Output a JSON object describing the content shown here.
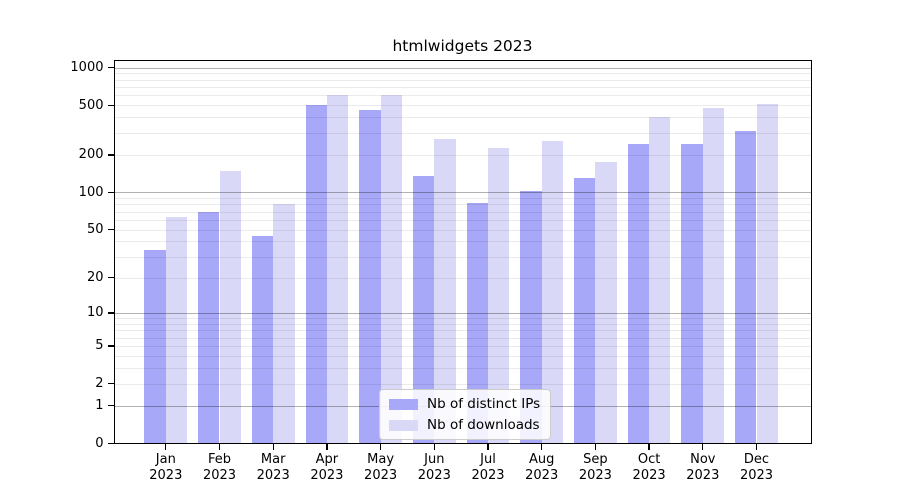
{
  "figure": {
    "title": "htmlwidgets 2023"
  },
  "chart_data": {
    "type": "bar",
    "title": "htmlwidgets 2023",
    "categories": [
      "Jan",
      "Feb",
      "Mar",
      "Apr",
      "May",
      "Jun",
      "Jul",
      "Aug",
      "Sep",
      "Oct",
      "Nov",
      "Dec"
    ],
    "category_year": "2023",
    "series": [
      {
        "name": "Nb of distinct IPs",
        "color": "#a8a8f8",
        "values": [
          34,
          70,
          44,
          500,
          461,
          135,
          82,
          103,
          130,
          244,
          244,
          308
        ]
      },
      {
        "name": "Nb of downloads",
        "color": "#d9d9f7",
        "values": [
          63,
          149,
          81,
          598,
          598,
          267,
          227,
          259,
          174,
          403,
          472,
          507
        ]
      }
    ],
    "yscale": "log1p",
    "ylim": [
      0,
      1148
    ],
    "yticks": [
      0,
      1,
      2,
      5,
      10,
      20,
      50,
      100,
      200,
      500,
      1000
    ],
    "major_grid": [
      1,
      10,
      100,
      1000
    ],
    "minor_grid": [
      2,
      3,
      4,
      5,
      6,
      7,
      8,
      9,
      20,
      30,
      40,
      50,
      60,
      70,
      80,
      90,
      200,
      300,
      400,
      500,
      600,
      700,
      800,
      900
    ],
    "grid": true,
    "legend_position": "lower center",
    "xlabel": "",
    "ylabel": ""
  }
}
